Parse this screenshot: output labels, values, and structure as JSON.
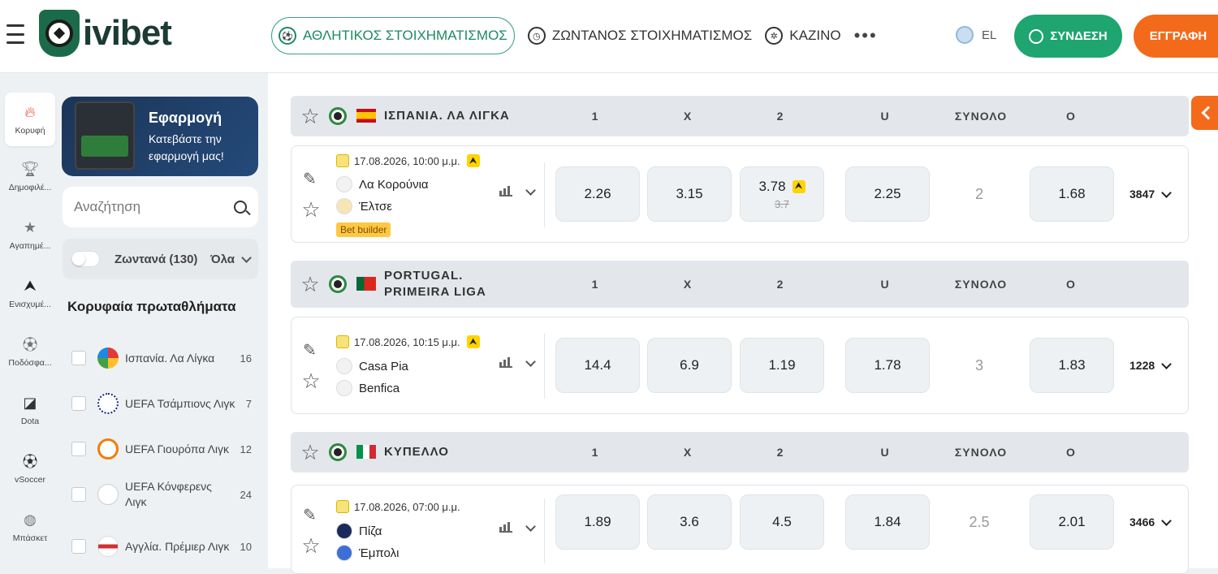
{
  "header": {
    "logo_text": "ivibet",
    "nav": {
      "sports": "ΑΘΛΗΤΙΚΟΣ ΣΤΟΙΧΗΜΑΤΙΣΜΟΣ",
      "live": "ΖΩΝΤΑΝΟΣ ΣΤΟΙΧΗΜΑΤΙΣΜΟΣ",
      "casino": "ΚΑΖΙΝΟ",
      "more": "•••"
    },
    "lang": "EL",
    "login": "ΣΥΝΔΕΣΗ",
    "register": "ΕΓΓΡΑΦΗ",
    "colors": {
      "green": "#1fa56f",
      "orange": "#f36a1a"
    }
  },
  "rail": [
    {
      "label": "Κορυφή",
      "icon": "flame-icon"
    },
    {
      "label": "Δημοφιλέ...",
      "icon": "trophy-icon"
    },
    {
      "label": "Αγαπημέ...",
      "icon": "star-icon"
    },
    {
      "label": "Ενισχυμέ...",
      "icon": "boost-icon"
    },
    {
      "label": "Ποδόσφα...",
      "icon": "soccer-icon"
    },
    {
      "label": "Dota",
      "icon": "dota-icon"
    },
    {
      "label": "vSoccer",
      "icon": "vsoccer-icon"
    },
    {
      "label": "Μπάσκετ",
      "icon": "basketball-icon"
    }
  ],
  "sidebar": {
    "app_title": "Εφαρμογή",
    "app_sub": "Κατεβάστε την εφαρμογή μας!",
    "search_placeholder": "Αναζήτηση",
    "live_label": "Ζωντανά (130)",
    "live_filter": "Όλα",
    "top_leagues_title": "Κορυφαία πρωταθλήματα",
    "leagues": [
      {
        "name": "Ισπανία. Λα Λίγκα",
        "count": "16"
      },
      {
        "name": "UEFA Τσάμπιονς Λιγκ",
        "count": "7"
      },
      {
        "name": "UEFA Γιουρόπα Λιγκ",
        "count": "12"
      },
      {
        "name": "UEFA Κόνφερενς Λιγκ",
        "count": "24"
      },
      {
        "name": "Αγγλία. Πρέμιερ Λιγκ",
        "count": "10"
      }
    ]
  },
  "columns": {
    "c1": "1",
    "cx": "X",
    "c2": "2",
    "u": "U",
    "total": "ΣΥΝΟΛΟ",
    "o": "O"
  },
  "events": [
    {
      "league": "ΙΣΠΑΝΙΑ. ΛΑ ΛΙΓΚΑ",
      "datetime": "17.08.2026, 10:00 μ.μ.",
      "home": "Λα Κορούνια",
      "away": "Έλτσε",
      "bet_builder": "Bet builder",
      "odds": {
        "1": "2.26",
        "x": "3.15",
        "2": "3.78",
        "2_old": "3.7",
        "u": "2.25",
        "total": "2",
        "o": "1.68"
      },
      "markets": "3847"
    },
    {
      "league": "PORTUGAL. PRIMEIRA LIGA",
      "datetime": "17.08.2026, 10:15 μ.μ.",
      "home": "Casa Pia",
      "away": "Benfica",
      "odds": {
        "1": "14.4",
        "x": "6.9",
        "2": "1.19",
        "u": "1.78",
        "total": "3",
        "o": "1.83"
      },
      "markets": "1228"
    },
    {
      "league": "ΚΥΠΕΛΛΟ",
      "datetime": "17.08.2026, 07:00 μ.μ.",
      "home": "Πίζα",
      "away": "Έμπολι",
      "odds": {
        "1": "1.89",
        "x": "3.6",
        "2": "4.5",
        "u": "1.84",
        "total": "2.5",
        "o": "2.01"
      },
      "markets": "3466"
    }
  ]
}
